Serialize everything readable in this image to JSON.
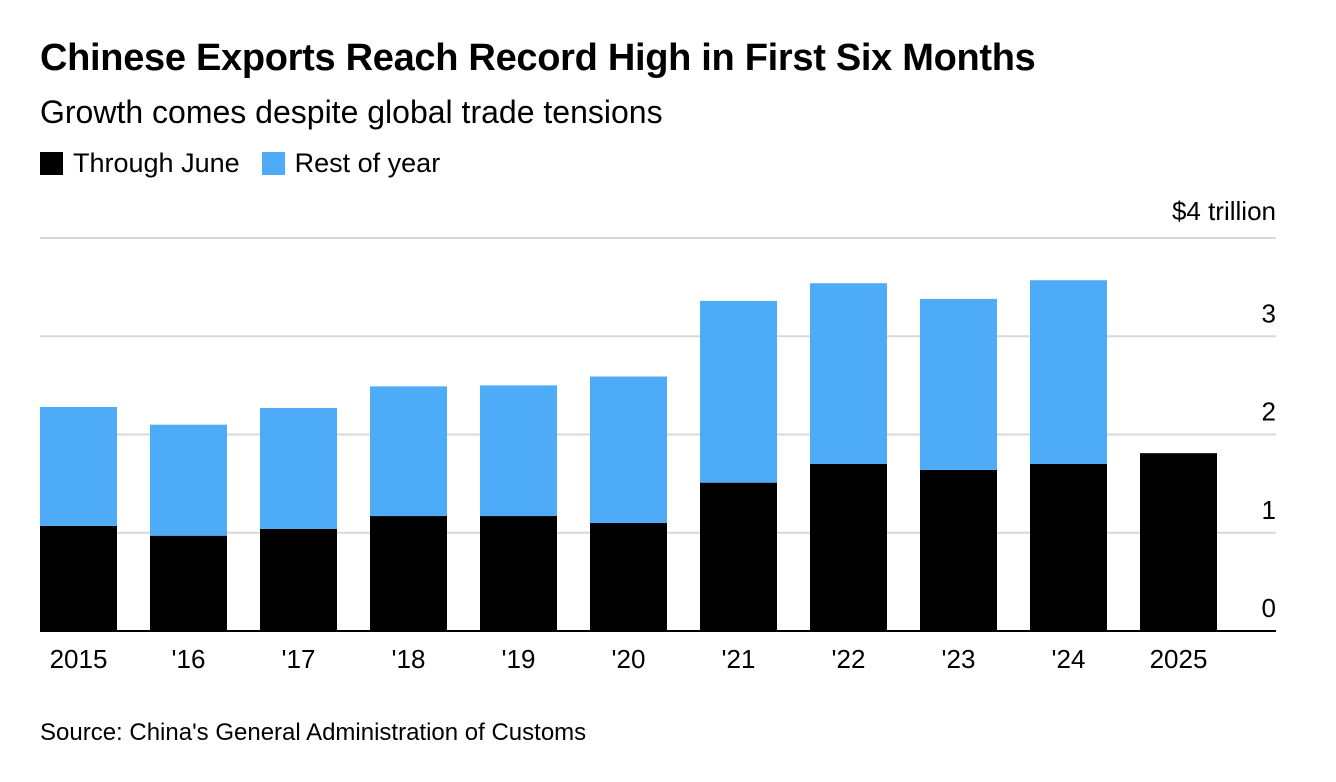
{
  "chart_data": {
    "type": "bar",
    "stacked": true,
    "title": "Chinese Exports Reach Record High in First Six Months",
    "subtitle": "Growth comes despite global trade tensions",
    "source": "Source: China's General Administration of Customs",
    "categories": [
      "2015",
      "'16",
      "'17",
      "'18",
      "'19",
      "'20",
      "'21",
      "'22",
      "'23",
      "'24",
      "2025"
    ],
    "series": [
      {
        "name": "Through June",
        "color": "#000000",
        "values": [
          1.07,
          0.97,
          1.04,
          1.17,
          1.17,
          1.1,
          1.51,
          1.7,
          1.64,
          1.7,
          1.81
        ]
      },
      {
        "name": "Rest of year",
        "color": "#4dabf7",
        "values": [
          1.21,
          1.13,
          1.23,
          1.32,
          1.33,
          1.49,
          1.85,
          1.84,
          1.74,
          1.87,
          0
        ]
      }
    ],
    "ylim": [
      0,
      4
    ],
    "yticks": [
      {
        "value": 0,
        "label": "0"
      },
      {
        "value": 1,
        "label": "1"
      },
      {
        "value": 2,
        "label": "2"
      },
      {
        "value": 3,
        "label": "3"
      },
      {
        "value": 4,
        "label": "$4 trillion"
      }
    ],
    "grid": true,
    "legend_position": "top-left",
    "y_axis_side": "right"
  }
}
